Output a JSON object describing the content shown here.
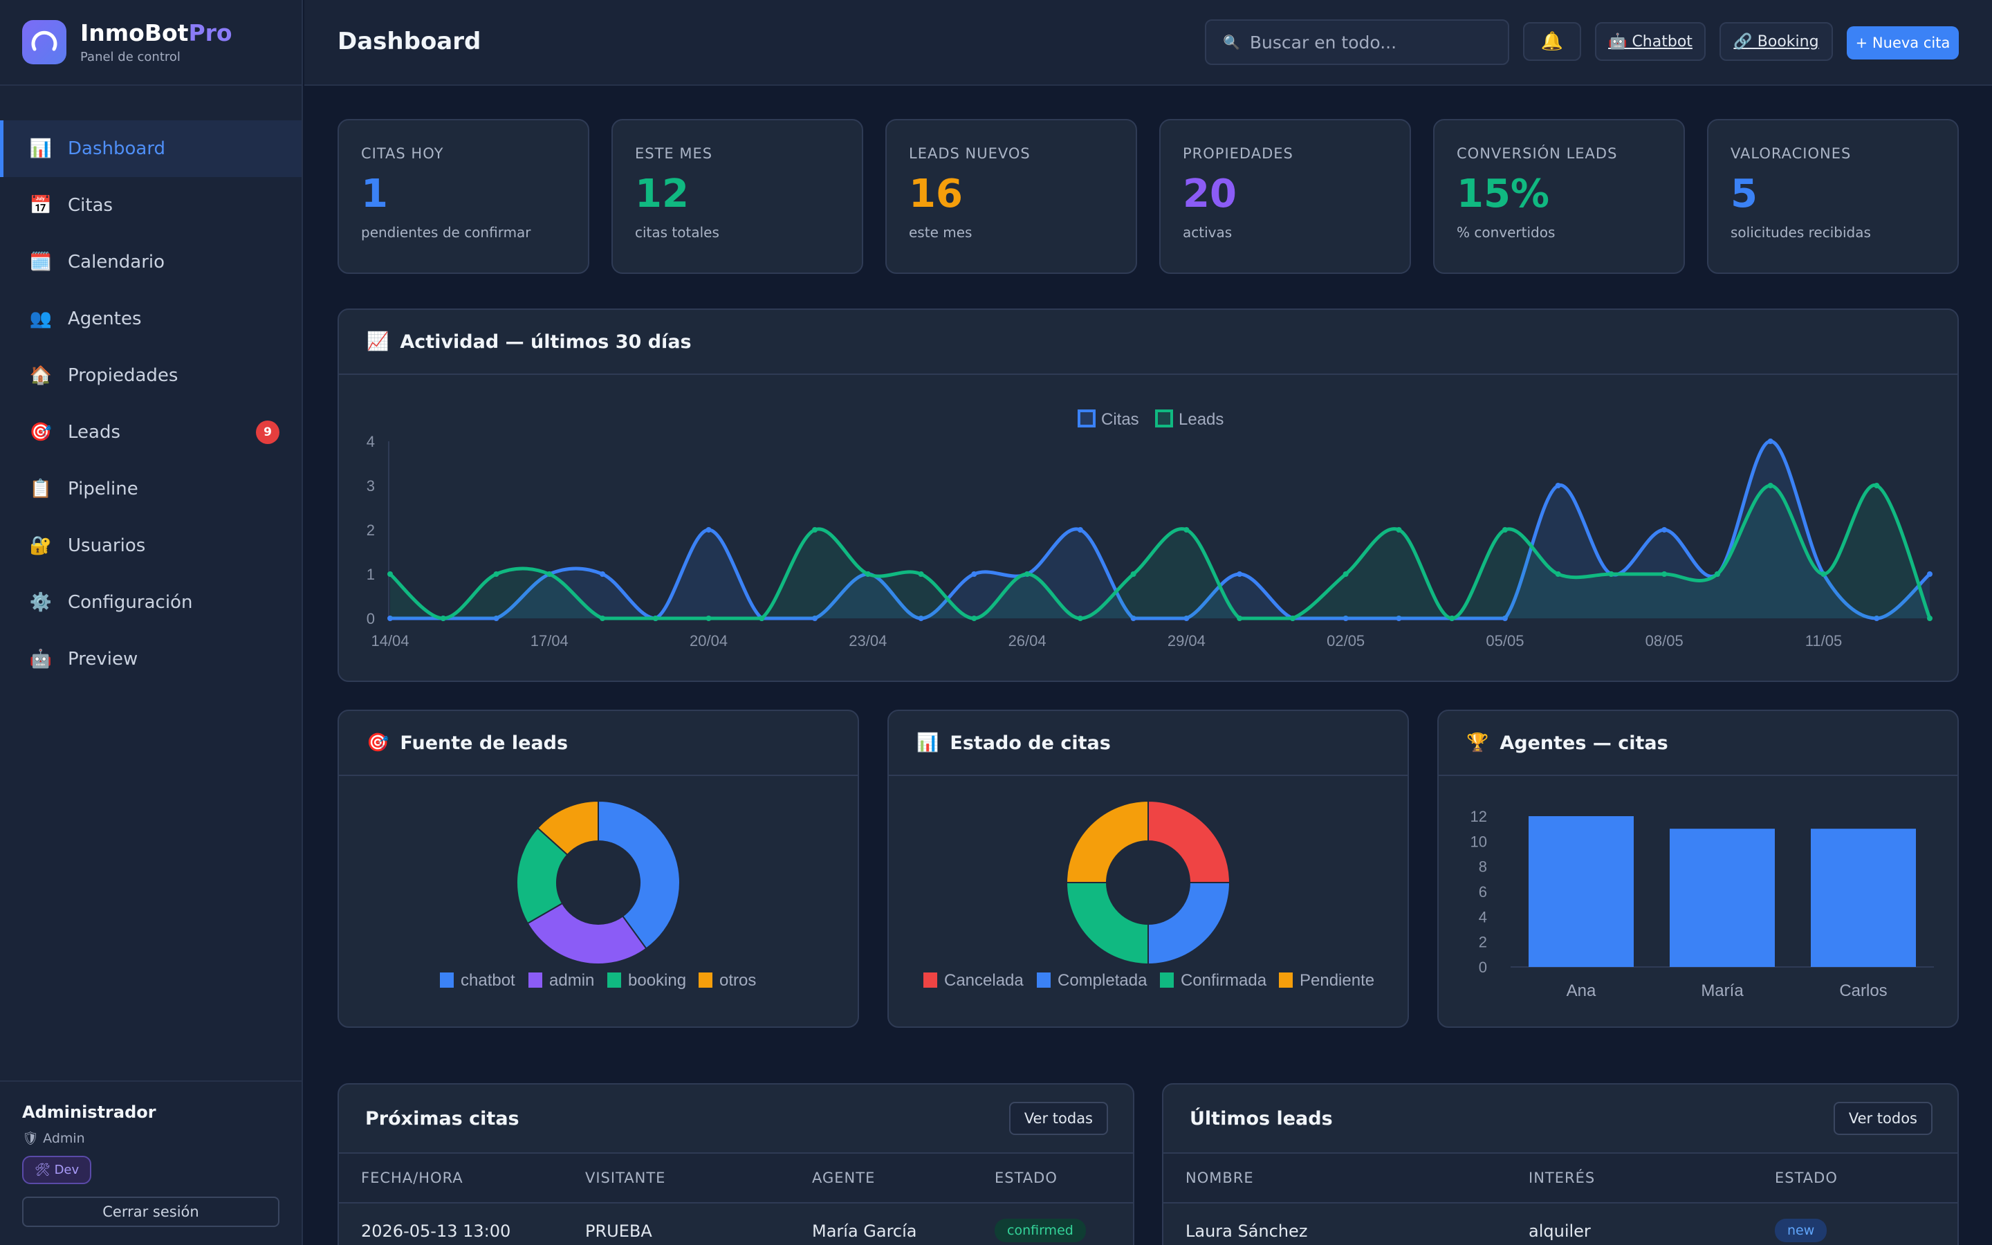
{
  "brand": {
    "name": "InmoBot",
    "name_accent": "Pro",
    "subtitle": "Panel de control"
  },
  "sidebar": {
    "items": [
      {
        "label": "Dashboard",
        "icon": "chart-icon",
        "glyph": "📊",
        "active": true
      },
      {
        "label": "Citas",
        "icon": "calendar-grid-icon",
        "glyph": "📅"
      },
      {
        "label": "Calendario",
        "icon": "calendar-icon",
        "glyph": "🗓️"
      },
      {
        "label": "Agentes",
        "icon": "people-icon",
        "glyph": "👥"
      },
      {
        "label": "Propiedades",
        "icon": "house-icon",
        "glyph": "🏠"
      },
      {
        "label": "Leads",
        "icon": "target-icon",
        "glyph": "🎯",
        "badge": "9"
      },
      {
        "label": "Pipeline",
        "icon": "clipboard-icon",
        "glyph": "📋"
      },
      {
        "label": "Usuarios",
        "icon": "lock-icon",
        "glyph": "🔐"
      },
      {
        "label": "Configuración",
        "icon": "gear-icon",
        "glyph": "⚙️"
      },
      {
        "label": "Preview",
        "icon": "bot-icon",
        "glyph": "🤖"
      }
    ],
    "user": {
      "name": "Administrador",
      "role": "🛡 Admin",
      "badge": "🛠 Dev",
      "logout": "Cerrar sesión"
    }
  },
  "header": {
    "title": "Dashboard",
    "search_placeholder": "Buscar en todo...",
    "chatbot": "🤖 Chatbot",
    "booking": "🔗 Booking",
    "new_appointment": "+ Nueva cita"
  },
  "kpis": [
    {
      "label": "CITAS HOY",
      "value": "1",
      "sub": "pendientes de confirmar",
      "color": "#3b82f6"
    },
    {
      "label": "ESTE MES",
      "value": "12",
      "sub": "citas totales",
      "color": "#10b981"
    },
    {
      "label": "LEADS NUEVOS",
      "value": "16",
      "sub": "este mes",
      "color": "#f59e0b"
    },
    {
      "label": "PROPIEDADES",
      "value": "20",
      "sub": "activas",
      "color": "#8b5cf6"
    },
    {
      "label": "CONVERSIÓN LEADS",
      "value": "15%",
      "sub": "% convertidos",
      "color": "#10b981"
    },
    {
      "label": "VALORACIONES",
      "value": "5",
      "sub": "solicitudes recibidas",
      "color": "#3b82f6"
    }
  ],
  "panels": {
    "activity_title": "Actividad — últimos 30 días",
    "sources_title": "Fuente de leads",
    "status_title": "Estado de citas",
    "agents_title": "Agentes — citas"
  },
  "chart_data": [
    {
      "type": "line",
      "title": "Actividad — últimos 30 días",
      "x": [
        "14/04",
        "15/04",
        "16/04",
        "17/04",
        "18/04",
        "19/04",
        "20/04",
        "21/04",
        "22/04",
        "23/04",
        "24/04",
        "25/04",
        "26/04",
        "27/04",
        "28/04",
        "29/04",
        "30/04",
        "01/05",
        "02/05",
        "03/05",
        "04/05",
        "05/05",
        "06/05",
        "07/05",
        "08/05",
        "09/05",
        "10/05",
        "11/05",
        "12/05",
        "13/05"
      ],
      "tick_labels": [
        "14/04",
        "17/04",
        "20/04",
        "23/04",
        "26/04",
        "29/04",
        "02/05",
        "05/05",
        "08/05",
        "11/05"
      ],
      "series": [
        {
          "name": "Citas",
          "color": "#3b82f6",
          "values": [
            0,
            0,
            0,
            1,
            1,
            0,
            2,
            0,
            0,
            1,
            0,
            1,
            1,
            2,
            0,
            0,
            1,
            0,
            0,
            0,
            0,
            0,
            3,
            1,
            2,
            1,
            4,
            1,
            0,
            1
          ]
        },
        {
          "name": "Leads",
          "color": "#10b981",
          "values": [
            1,
            0,
            1,
            1,
            0,
            0,
            0,
            0,
            2,
            1,
            1,
            0,
            1,
            0,
            1,
            2,
            0,
            0,
            1,
            2,
            0,
            2,
            1,
            1,
            1,
            1,
            3,
            1,
            3,
            0
          ]
        }
      ],
      "ylim": [
        0,
        4
      ],
      "yticks": [
        0,
        1,
        2,
        3,
        4
      ],
      "legend": "top-center"
    },
    {
      "type": "pie",
      "title": "Fuente de leads",
      "labels": [
        "chatbot",
        "admin",
        "booking",
        "otros"
      ],
      "values": [
        6,
        4,
        3,
        2
      ],
      "colors": [
        "#3b82f6",
        "#8b5cf6",
        "#10b981",
        "#f59e0b"
      ],
      "legend": "bottom"
    },
    {
      "type": "pie",
      "title": "Estado de citas",
      "labels": [
        "Cancelada",
        "Completada",
        "Confirmada",
        "Pendiente"
      ],
      "values": [
        1,
        1,
        1,
        1
      ],
      "colors": [
        "#ef4444",
        "#3b82f6",
        "#10b981",
        "#f59e0b"
      ],
      "legend": "bottom"
    },
    {
      "type": "bar",
      "title": "Agentes — citas",
      "categories": [
        "Ana",
        "María",
        "Carlos"
      ],
      "values": [
        12,
        11,
        11
      ],
      "color": "#3b82f6",
      "ylim": [
        0,
        12
      ],
      "yticks": [
        0,
        2,
        4,
        6,
        8,
        10,
        12
      ]
    }
  ],
  "upcoming": {
    "title": "Próximas citas",
    "button": "Ver todas",
    "columns": [
      "FECHA/HORA",
      "VISITANTE",
      "AGENTE",
      "ESTADO"
    ],
    "rows": [
      {
        "datetime": "2026-05-13 13:00",
        "visitor": "PRUEBA",
        "agent": "María García",
        "status": "confirmed"
      }
    ]
  },
  "recent": {
    "title": "Últimos leads",
    "button": "Ver todos",
    "columns": [
      "NOMBRE",
      "INTERÉS",
      "ESTADO"
    ],
    "rows": [
      {
        "name": "Laura Sánchez",
        "interest": "alquiler",
        "status": "new"
      }
    ]
  }
}
